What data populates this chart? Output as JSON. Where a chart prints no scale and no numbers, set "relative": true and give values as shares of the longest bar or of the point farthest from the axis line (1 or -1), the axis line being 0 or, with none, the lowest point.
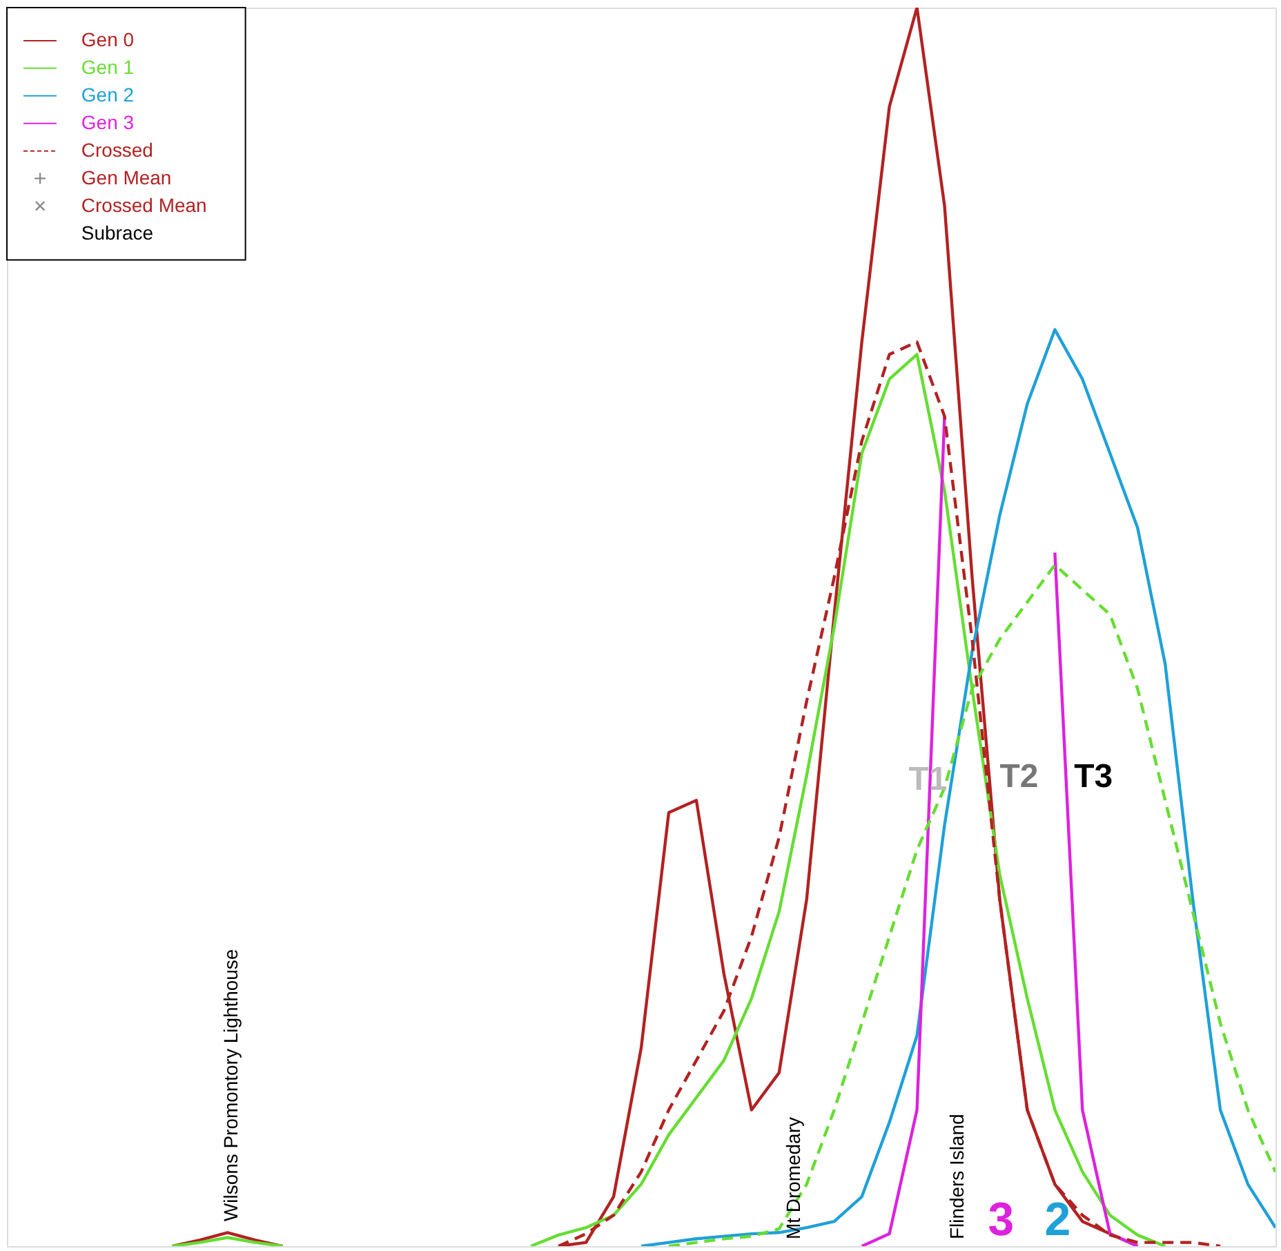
{
  "chart_data": {
    "type": "line",
    "relative": true,
    "legend": "top left",
    "categories": [
      null,
      null,
      null,
      null,
      null,
      null,
      null,
      null,
      null,
      null,
      null,
      null,
      null,
      null,
      null,
      null,
      null,
      null,
      null,
      null,
      null,
      null,
      null,
      null,
      null,
      null,
      null,
      null,
      null,
      null,
      null,
      null,
      null,
      null,
      null,
      null,
      null,
      null,
      null,
      null,
      null,
      null,
      null,
      null,
      null,
      null,
      null
    ],
    "series": [
      {
        "name": "Gen 0",
        "color": "#b22222",
        "line_style": "solid",
        "values": [
          null,
          null,
          null,
          null,
          null,
          null,
          0,
          0.005,
          0.011,
          0.005,
          0,
          null,
          null,
          null,
          null,
          null,
          null,
          null,
          null,
          null,
          0,
          0.003,
          0.04,
          0.16,
          0.35,
          0.36,
          0.22,
          0.11,
          0.14,
          0.28,
          0.51,
          0.73,
          0.92,
          1.0,
          0.84,
          0.54,
          0.28,
          0.11,
          0.05,
          0.02,
          0.01,
          0,
          null,
          null,
          null,
          null,
          null
        ]
      },
      {
        "name": "Gen 1",
        "color": "#66dd33",
        "line_style": "solid",
        "values": [
          null,
          null,
          null,
          null,
          null,
          null,
          0,
          0.003,
          0.007,
          0.003,
          0,
          null,
          null,
          null,
          null,
          null,
          null,
          null,
          null,
          0,
          0.009,
          0.015,
          0.025,
          0.05,
          0.09,
          0.12,
          0.15,
          0.2,
          0.27,
          0.38,
          0.5,
          0.64,
          0.7,
          0.72,
          0.61,
          0.45,
          0.3,
          0.2,
          0.11,
          0.06,
          0.025,
          0.009,
          0,
          null,
          null,
          null,
          null
        ]
      },
      {
        "name": "Gen 2",
        "color": "#1fa0d8",
        "line_style": "solid",
        "values": [
          null,
          null,
          null,
          null,
          null,
          null,
          null,
          null,
          null,
          null,
          null,
          null,
          null,
          null,
          null,
          null,
          null,
          null,
          null,
          null,
          null,
          null,
          null,
          0,
          0.003,
          0.006,
          0.008,
          0.01,
          0.011,
          0.015,
          0.02,
          0.04,
          0.1,
          0.17,
          0.34,
          0.48,
          0.59,
          0.68,
          0.74,
          0.7,
          0.64,
          0.58,
          0.47,
          0.28,
          0.11,
          0.05,
          0.015
        ]
      },
      {
        "name": "Gen 3",
        "color": "#dd22dd",
        "line_style": "solid",
        "values": [
          null,
          null,
          null,
          null,
          null,
          null,
          null,
          null,
          null,
          null,
          null,
          null,
          null,
          null,
          null,
          null,
          null,
          null,
          null,
          null,
          null,
          null,
          null,
          null,
          null,
          null,
          null,
          null,
          null,
          null,
          null,
          0,
          0.01,
          0.11,
          0.67,
          null,
          null,
          null,
          0.56,
          0.11,
          0.01,
          0,
          null,
          null,
          null,
          null,
          null
        ]
      },
      {
        "name": "Crossed",
        "color": "#b22222",
        "line_style": "dashed",
        "values": [
          null,
          null,
          null,
          null,
          null,
          null,
          null,
          null,
          null,
          null,
          null,
          null,
          null,
          null,
          null,
          null,
          null,
          null,
          null,
          null,
          0,
          0.01,
          0.025,
          0.06,
          0.11,
          0.15,
          0.19,
          0.25,
          0.33,
          0.44,
          0.54,
          0.65,
          0.72,
          0.73,
          0.67,
          0.49,
          0.28,
          0.11,
          0.05,
          0.025,
          0.009,
          0.003,
          0.003,
          0.003,
          0,
          null,
          null
        ]
      },
      {
        "color": "#66dd33",
        "line_style": "dashed",
        "values": [
          null,
          null,
          null,
          null,
          null,
          null,
          null,
          null,
          null,
          null,
          null,
          null,
          null,
          null,
          null,
          null,
          null,
          null,
          null,
          null,
          null,
          null,
          null,
          null,
          0,
          0.003,
          0.006,
          0.008,
          0.014,
          0.05,
          0.11,
          0.18,
          0.25,
          0.32,
          0.37,
          0.45,
          0.49,
          0.52,
          0.55,
          0.53,
          0.51,
          0.45,
          0.36,
          0.27,
          0.18,
          0.11,
          0.06
        ]
      }
    ],
    "annotations": [
      "+",
      "Gen Mean",
      "×",
      "Crossed Mean",
      "Subrace",
      "Wilsons Promontory Lighthouse",
      "Mt Dromedary",
      "Flinders Island",
      "T1",
      "T2",
      "T3",
      "3",
      "2"
    ]
  }
}
